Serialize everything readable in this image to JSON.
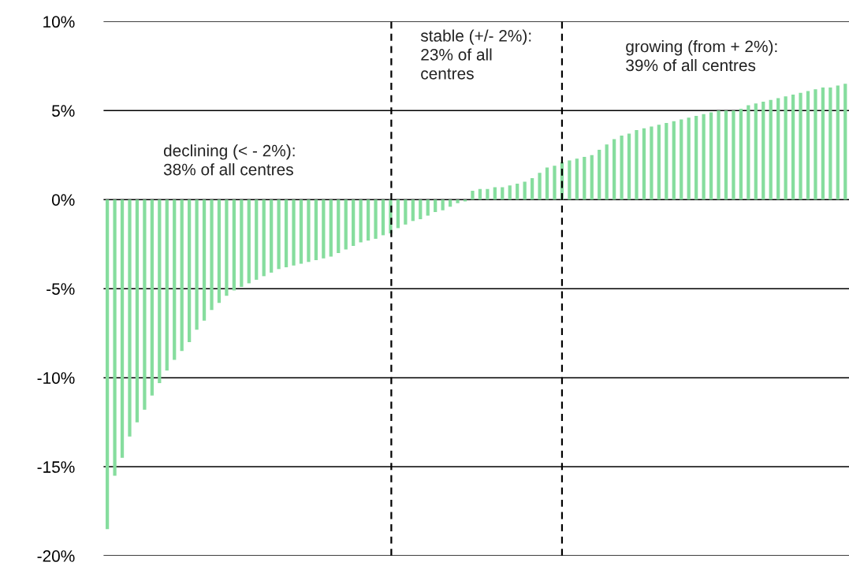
{
  "chart_data": {
    "type": "bar",
    "categories": [
      null,
      null,
      null,
      null,
      null,
      null,
      null,
      null,
      null,
      null,
      null,
      null,
      null,
      null,
      null,
      null,
      null,
      null,
      null,
      null,
      null,
      null,
      null,
      null,
      null,
      null,
      null,
      null,
      null,
      null,
      null,
      null,
      null,
      null,
      null,
      null,
      null,
      null,
      null,
      null,
      null,
      null,
      null,
      null,
      null,
      null,
      null,
      null,
      null,
      null,
      null,
      null,
      null,
      null,
      null,
      null,
      null,
      null,
      null,
      null,
      null,
      null,
      null,
      null,
      null,
      null,
      null,
      null,
      null,
      null,
      null,
      null,
      null,
      null,
      null,
      null,
      null,
      null,
      null,
      null,
      null,
      null,
      null,
      null,
      null,
      null,
      null,
      null,
      null,
      null,
      null,
      null,
      null,
      null,
      null,
      null,
      null,
      null,
      null,
      null
    ],
    "values": [
      -18.5,
      -15.5,
      -14.5,
      -13.3,
      -12.5,
      -11.8,
      -11.0,
      -10.3,
      -9.6,
      -9.0,
      -8.5,
      -8.0,
      -7.3,
      -6.8,
      -6.2,
      -5.8,
      -5.4,
      -5.1,
      -4.9,
      -4.7,
      -4.5,
      -4.3,
      -4.1,
      -3.9,
      -3.8,
      -3.7,
      -3.6,
      -3.5,
      -3.4,
      -3.3,
      -3.2,
      -3.0,
      -2.8,
      -2.6,
      -2.4,
      -2.3,
      -2.2,
      -2.0,
      -1.9,
      -1.6,
      -1.4,
      -1.2,
      -1.1,
      -0.9,
      -0.7,
      -0.6,
      -0.4,
      -0.2,
      -0.1,
      0.5,
      0.6,
      0.6,
      0.7,
      0.7,
      0.8,
      0.9,
      1.0,
      1.2,
      1.5,
      1.8,
      1.9,
      2.1,
      2.2,
      2.3,
      2.4,
      2.5,
      2.8,
      3.1,
      3.4,
      3.6,
      3.7,
      3.9,
      4.0,
      4.1,
      4.2,
      4.3,
      4.4,
      4.5,
      4.6,
      4.7,
      4.8,
      4.9,
      5.0,
      5.0,
      5.0,
      5.1,
      5.3,
      5.4,
      5.5,
      5.6,
      5.7,
      5.8,
      5.9,
      6.0,
      6.1,
      6.2,
      6.3,
      6.3,
      6.4,
      6.5
    ],
    "color": "#86dd9e",
    "ylim": [
      -20,
      10
    ],
    "yticks": [
      {
        "value": -20,
        "label": "-20%"
      },
      {
        "value": -15,
        "label": "-15%"
      },
      {
        "value": -10,
        "label": "-10%"
      },
      {
        "value": -5,
        "label": "-5%"
      },
      {
        "value": 0,
        "label": "0%"
      },
      {
        "value": 5,
        "label": "5%"
      },
      {
        "value": 10,
        "label": "10%"
      }
    ],
    "tick_labels": "y",
    "grid": "y",
    "annotations": [
      "declining (< - 2%):\n38% of all centres",
      "stable (+/- 2%):\n23% of all\ncentres",
      "growing (from + 2%):\n39% of all centres"
    ]
  }
}
